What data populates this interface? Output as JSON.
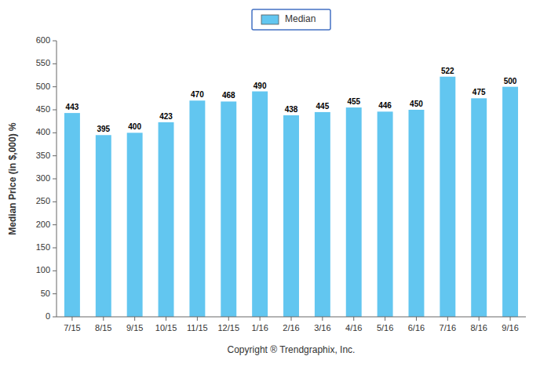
{
  "chart_data": {
    "type": "bar",
    "categories": [
      "7/15",
      "8/15",
      "9/15",
      "10/15",
      "11/15",
      "12/15",
      "1/16",
      "2/16",
      "3/16",
      "4/16",
      "5/16",
      "6/16",
      "7/16",
      "8/16",
      "9/16"
    ],
    "series": [
      {
        "name": "Median",
        "color": "#62C6F0",
        "values": [
          443,
          395,
          400,
          423,
          470,
          468,
          490,
          438,
          445,
          455,
          446,
          450,
          522,
          475,
          500
        ]
      }
    ],
    "xlabel": "Copyright ® Trendgraphix, Inc.",
    "ylabel": "Median Price (in $,000) %",
    "ylim": [
      0,
      600
    ],
    "yticks": [
      0,
      50,
      100,
      150,
      200,
      250,
      300,
      350,
      400,
      450,
      500,
      550,
      600
    ],
    "grid": false,
    "legend": "top",
    "data_labels": true
  }
}
